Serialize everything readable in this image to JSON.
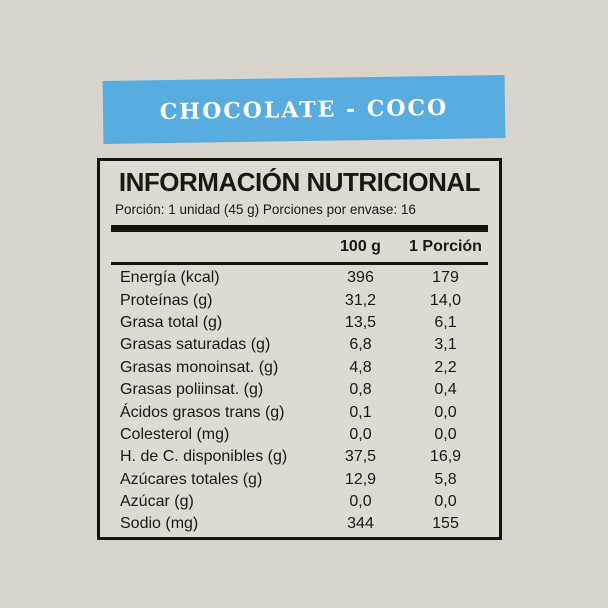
{
  "banner": {
    "title": "CHOCOLATE - COCO"
  },
  "panel": {
    "title": "INFORMACIÓN NUTRICIONAL",
    "serving_line": "Porción: 1 unidad (45 g) Porciones por envase: 16",
    "columns": [
      "100 g",
      "1 Porción"
    ],
    "rows": [
      {
        "name": "Energía (kcal)",
        "per_100g": "396",
        "per_portion": "179"
      },
      {
        "name": "Proteínas (g)",
        "per_100g": "31,2",
        "per_portion": "14,0"
      },
      {
        "name": "Grasa total (g)",
        "per_100g": "13,5",
        "per_portion": "6,1"
      },
      {
        "name": "Grasas saturadas (g)",
        "per_100g": "6,8",
        "per_portion": "3,1"
      },
      {
        "name": "Grasas monoinsat. (g)",
        "per_100g": "4,8",
        "per_portion": "2,2"
      },
      {
        "name": "Grasas poliinsat. (g)",
        "per_100g": "0,8",
        "per_portion": "0,4"
      },
      {
        "name": "Ácidos grasos trans (g)",
        "per_100g": "0,1",
        "per_portion": "0,0"
      },
      {
        "name": "Colesterol (mg)",
        "per_100g": "0,0",
        "per_portion": "0,0"
      },
      {
        "name": "H. de C. disponibles (g)",
        "per_100g": "37,5",
        "per_portion": "16,9"
      },
      {
        "name": "Azúcares totales (g)",
        "per_100g": "12,9",
        "per_portion": "5,8"
      },
      {
        "name": "Azúcar (g)",
        "per_100g": "0,0",
        "per_portion": "0,0"
      },
      {
        "name": "Sodio (mg)",
        "per_100g": "344",
        "per_portion": "155"
      }
    ]
  },
  "colors": {
    "page_background": "#d8d4cb",
    "panel_background": "#dedad1",
    "banner_blue": "#58ace0",
    "banner_text": "#ffffff",
    "border_and_text": "#151310"
  }
}
